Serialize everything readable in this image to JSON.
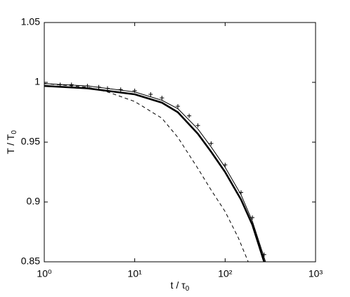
{
  "chart_data": {
    "type": "line",
    "xlabel": "t / τ",
    "xlabel_subscript": "0",
    "ylabel": "T / T",
    "ylabel_subscript": "0",
    "xscale": "log",
    "xlim": [
      1,
      1000
    ],
    "xticks": [
      {
        "value": 1,
        "label": "10⁰"
      },
      {
        "value": 10,
        "label": "10¹"
      },
      {
        "value": 100,
        "label": "10²"
      },
      {
        "value": 1000,
        "label": "10³"
      }
    ],
    "ylim": [
      0.85,
      1.05
    ],
    "yticks": [
      0.85,
      0.9,
      0.95,
      1,
      1.05
    ],
    "grid": false,
    "series": [
      {
        "color": "#000000",
        "style": "thick",
        "x": [
          1,
          3,
          10,
          20,
          30,
          50,
          70,
          100,
          150,
          200,
          270
        ],
        "values": [
          0.997,
          0.995,
          0.99,
          0.983,
          0.975,
          0.957,
          0.942,
          0.925,
          0.902,
          0.881,
          0.85
        ]
      },
      {
        "color": "#000000",
        "style": "thin",
        "x": [
          1,
          3,
          10,
          20,
          30,
          50,
          70,
          100,
          150,
          200,
          280
        ],
        "values": [
          0.999,
          0.997,
          0.992,
          0.985,
          0.978,
          0.961,
          0.946,
          0.929,
          0.906,
          0.884,
          0.85
        ]
      },
      {
        "color": "#000000",
        "style": "dashed",
        "x": [
          1,
          3,
          5,
          10,
          20,
          30,
          50,
          70,
          100,
          140,
          180
        ],
        "values": [
          0.999,
          0.996,
          0.992,
          0.984,
          0.97,
          0.954,
          0.928,
          0.91,
          0.892,
          0.87,
          0.85
        ]
      },
      {
        "color": "#000000",
        "style": "marker",
        "x": [
          1,
          1.5,
          2,
          3,
          4,
          5,
          7,
          10,
          15,
          20,
          30,
          40,
          50,
          70,
          100,
          150,
          200,
          270
        ],
        "values": [
          0.999,
          0.998,
          0.998,
          0.997,
          0.996,
          0.995,
          0.994,
          0.993,
          0.99,
          0.987,
          0.98,
          0.972,
          0.964,
          0.949,
          0.931,
          0.908,
          0.887,
          0.856
        ]
      }
    ]
  }
}
